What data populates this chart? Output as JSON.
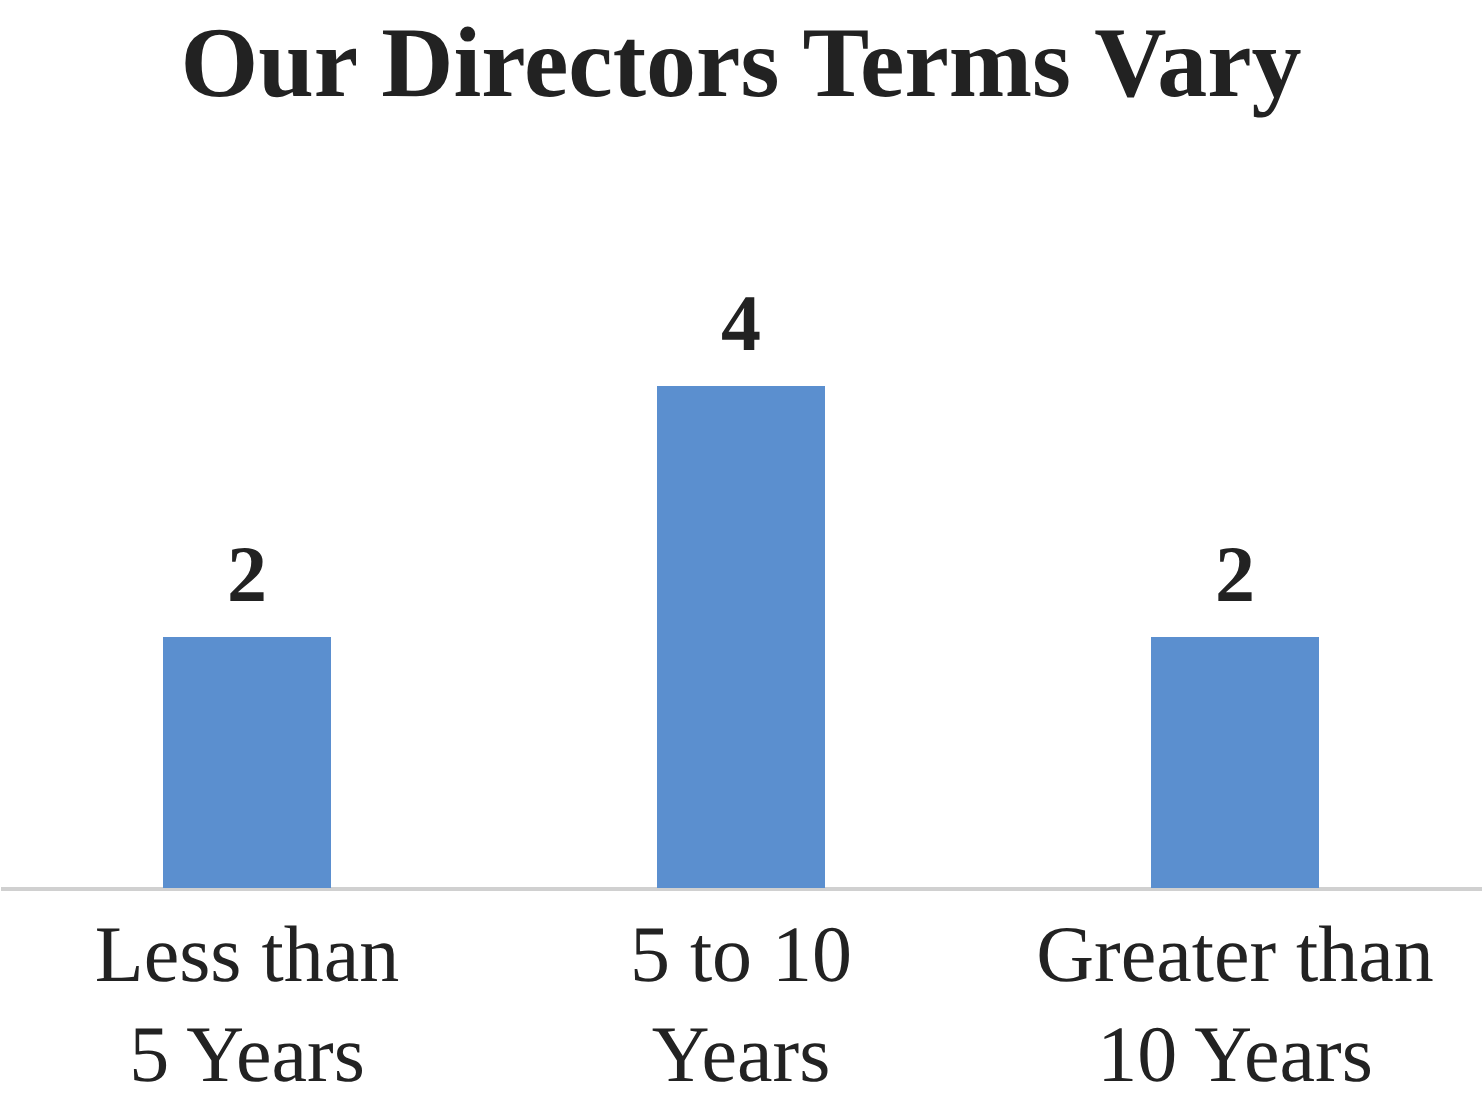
{
  "chart_data": {
    "type": "bar",
    "title": "Our Directors Terms Vary",
    "categories": [
      "Less than\n5 Years",
      "5 to 10\nYears",
      "Greater than\n10 Years"
    ],
    "values": [
      2,
      4,
      2
    ],
    "color": "#5b8fcf",
    "data_labels": true,
    "tick_labels": "x"
  }
}
